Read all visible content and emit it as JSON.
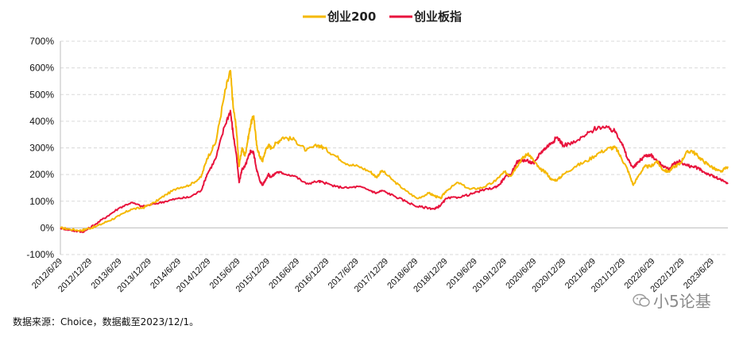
{
  "chart_data": {
    "type": "line",
    "title": "",
    "xlabel": "",
    "ylabel": "",
    "ylim": [
      -100,
      700
    ],
    "y_ticks": [
      "-100%",
      "0%",
      "100%",
      "200%",
      "300%",
      "400%",
      "500%",
      "600%",
      "700%"
    ],
    "x_ticks": [
      "2012/6/29",
      "2012/12/29",
      "2013/6/29",
      "2013/12/29",
      "2014/6/29",
      "2014/12/29",
      "2015/6/29",
      "2015/12/29",
      "2016/6/29",
      "2016/12/29",
      "2017/6/29",
      "2017/12/29",
      "2018/6/29",
      "2018/12/29",
      "2019/6/29",
      "2019/12/29",
      "2020/6/29",
      "2020/12/29",
      "2021/6/29",
      "2021/12/29",
      "2022/6/29",
      "2022/12/29",
      "2023/6/29"
    ],
    "x_range": [
      2012.49,
      2023.92
    ],
    "legend_position": "top-center",
    "series": [
      {
        "name": "创业200",
        "color": "#F5B800",
        "x": [
          2012.49,
          2012.65,
          2012.85,
          2012.92,
          2013.1,
          2013.3,
          2013.5,
          2013.7,
          2013.9,
          2014.1,
          2014.3,
          2014.5,
          2014.7,
          2014.9,
          2015.0,
          2015.15,
          2015.3,
          2015.4,
          2015.45,
          2015.5,
          2015.55,
          2015.6,
          2015.65,
          2015.7,
          2015.75,
          2015.8,
          2015.85,
          2015.9,
          2015.95,
          2016.0,
          2016.05,
          2016.1,
          2016.2,
          2016.3,
          2016.5,
          2016.7,
          2016.9,
          2017.0,
          2017.2,
          2017.4,
          2017.6,
          2017.8,
          2017.9,
          2018.0,
          2018.2,
          2018.4,
          2018.6,
          2018.8,
          2018.9,
          2019.0,
          2019.1,
          2019.3,
          2019.5,
          2019.7,
          2019.9,
          2020.0,
          2020.1,
          2020.2,
          2020.3,
          2020.4,
          2020.5,
          2020.6,
          2020.7,
          2020.8,
          2020.9,
          2021.0,
          2021.1,
          2021.3,
          2021.5,
          2021.7,
          2021.9,
          2022.0,
          2022.1,
          2022.2,
          2022.3,
          2022.4,
          2022.5,
          2022.6,
          2022.7,
          2022.8,
          2022.9,
          2023.0,
          2023.1,
          2023.2,
          2023.3,
          2023.4,
          2023.5,
          2023.6,
          2023.7,
          2023.8,
          2023.92
        ],
        "values": [
          0,
          -5,
          -10,
          -5,
          5,
          25,
          45,
          70,
          75,
          95,
          125,
          150,
          160,
          190,
          260,
          320,
          500,
          590,
          450,
          380,
          230,
          300,
          270,
          330,
          390,
          420,
          310,
          270,
          250,
          290,
          310,
          300,
          320,
          340,
          330,
          290,
          310,
          300,
          270,
          240,
          230,
          210,
          190,
          215,
          175,
          140,
          110,
          130,
          120,
          110,
          140,
          170,
          145,
          150,
          170,
          190,
          210,
          195,
          230,
          260,
          280,
          250,
          220,
          210,
          180,
          180,
          200,
          230,
          250,
          280,
          300,
          300,
          260,
          220,
          160,
          200,
          230,
          230,
          250,
          220,
          210,
          230,
          240,
          280,
          290,
          270,
          250,
          235,
          220,
          210,
          230
        ]
      },
      {
        "name": "创业板指",
        "color": "#E8133D",
        "x": [
          2012.49,
          2012.65,
          2012.85,
          2012.92,
          2013.1,
          2013.3,
          2013.5,
          2013.7,
          2013.9,
          2014.1,
          2014.3,
          2014.5,
          2014.7,
          2014.9,
          2015.0,
          2015.15,
          2015.3,
          2015.4,
          2015.45,
          2015.5,
          2015.55,
          2015.6,
          2015.65,
          2015.7,
          2015.75,
          2015.8,
          2015.85,
          2015.9,
          2015.95,
          2016.0,
          2016.05,
          2016.1,
          2016.2,
          2016.3,
          2016.5,
          2016.7,
          2016.9,
          2017.0,
          2017.2,
          2017.4,
          2017.6,
          2017.8,
          2017.9,
          2018.0,
          2018.2,
          2018.4,
          2018.6,
          2018.8,
          2018.9,
          2019.0,
          2019.1,
          2019.3,
          2019.5,
          2019.7,
          2019.9,
          2020.0,
          2020.1,
          2020.2,
          2020.3,
          2020.4,
          2020.5,
          2020.6,
          2020.7,
          2020.8,
          2020.9,
          2021.0,
          2021.1,
          2021.3,
          2021.5,
          2021.7,
          2021.9,
          2022.0,
          2022.1,
          2022.2,
          2022.3,
          2022.4,
          2022.5,
          2022.6,
          2022.7,
          2022.8,
          2022.9,
          2023.0,
          2023.1,
          2023.2,
          2023.3,
          2023.4,
          2023.5,
          2023.6,
          2023.7,
          2023.8,
          2023.92
        ],
        "values": [
          0,
          -8,
          -15,
          -10,
          15,
          45,
          75,
          95,
          80,
          90,
          100,
          110,
          115,
          140,
          200,
          260,
          380,
          440,
          350,
          280,
          170,
          220,
          230,
          260,
          290,
          280,
          220,
          180,
          160,
          180,
          200,
          190,
          210,
          205,
          195,
          165,
          175,
          170,
          155,
          150,
          155,
          140,
          130,
          140,
          120,
          100,
          80,
          75,
          70,
          85,
          110,
          115,
          125,
          140,
          150,
          160,
          190,
          200,
          245,
          255,
          250,
          240,
          280,
          300,
          320,
          340,
          310,
          320,
          350,
          380,
          370,
          360,
          320,
          260,
          225,
          250,
          270,
          275,
          250,
          235,
          220,
          240,
          250,
          235,
          230,
          225,
          210,
          200,
          190,
          180,
          165
        ]
      }
    ]
  },
  "source_note": "数据来源：Choice，数据截至2023/12/1。",
  "watermark": "小5论基"
}
